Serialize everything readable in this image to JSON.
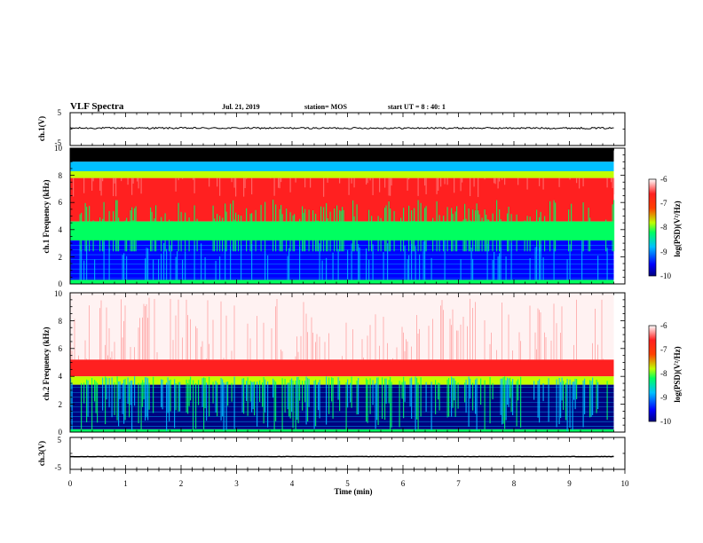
{
  "header": {
    "title": "VLF Spectra",
    "date": "Jul. 21, 2019",
    "station": "station= MOS",
    "start_time": "start UT =  8 : 40: 1"
  },
  "colors": {
    "colormap": [
      "#000080",
      "#0000ff",
      "#00c0ff",
      "#00ff60",
      "#c0ff00",
      "#ff4000",
      "#ff2020",
      "#ffffff"
    ],
    "black_band": "#000000",
    "trace": "#000000"
  },
  "chart_data": [
    {
      "type": "line",
      "panel": "ch1-voltage",
      "ylabel": "ch.1(V)",
      "ylim": [
        -5,
        5
      ],
      "y_tick_labels": [
        "5",
        "-5"
      ],
      "x_range": [
        0,
        10
      ],
      "series": [
        {
          "x": [
            0,
            9.8
          ],
          "y": [
            0.3,
            0.3
          ]
        }
      ]
    },
    {
      "type": "heatmap",
      "panel": "ch1-spectrogram",
      "ylabel": "ch.1 Frequency (kHz)",
      "ylim": [
        0,
        10
      ],
      "y_tick_labels": [
        "0",
        "2",
        "4",
        "6",
        "8",
        "10"
      ],
      "x_range": [
        0,
        10
      ],
      "data_end_min": 9.8,
      "bands_khz": {
        "black_top": [
          9.0,
          10.0
        ],
        "cyan": [
          8.3,
          9.0
        ],
        "red_main": [
          4.6,
          7.8
        ],
        "transition": [
          3.2,
          4.6
        ],
        "blue_low": [
          0.3,
          3.2
        ]
      },
      "colorbar": {
        "label": "log(PSD)(V²/Hz)",
        "range": [
          -10,
          -6
        ],
        "tick_labels": [
          "-6",
          "-7",
          "-8",
          "-9",
          "-10"
        ]
      }
    },
    {
      "type": "heatmap",
      "panel": "ch2-spectrogram",
      "ylabel": "ch.2 Frequency (kHz)",
      "ylim": [
        0,
        10
      ],
      "y_tick_labels": [
        "0",
        "2",
        "4",
        "6",
        "8",
        "10"
      ],
      "x_range": [
        0,
        10
      ],
      "data_end_min": 9.8,
      "bands_khz": {
        "white_speckle": [
          5.2,
          10.0
        ],
        "red_main": [
          4.0,
          5.2
        ],
        "transition": [
          3.4,
          4.0
        ],
        "blue_low": [
          0.2,
          3.4
        ]
      },
      "colorbar": {
        "label": "log(PSD)(V²/Hz)",
        "range": [
          -10,
          -6
        ],
        "tick_labels": [
          "-6",
          "-7",
          "-8",
          "-9",
          "-10"
        ]
      }
    },
    {
      "type": "line",
      "panel": "ch3-voltage",
      "ylabel": "ch.3(V)",
      "ylim": [
        -5,
        5
      ],
      "y_tick_labels": [
        "5",
        "-5"
      ],
      "x_range": [
        0,
        10
      ],
      "series": [
        {
          "x": [
            0,
            9.8
          ],
          "y": [
            -1.0,
            -1.0
          ]
        }
      ]
    }
  ],
  "x_axis": {
    "label": "Time (min)",
    "tick_labels": [
      "0",
      "1",
      "2",
      "3",
      "4",
      "5",
      "6",
      "7",
      "8",
      "9",
      "10"
    ]
  }
}
